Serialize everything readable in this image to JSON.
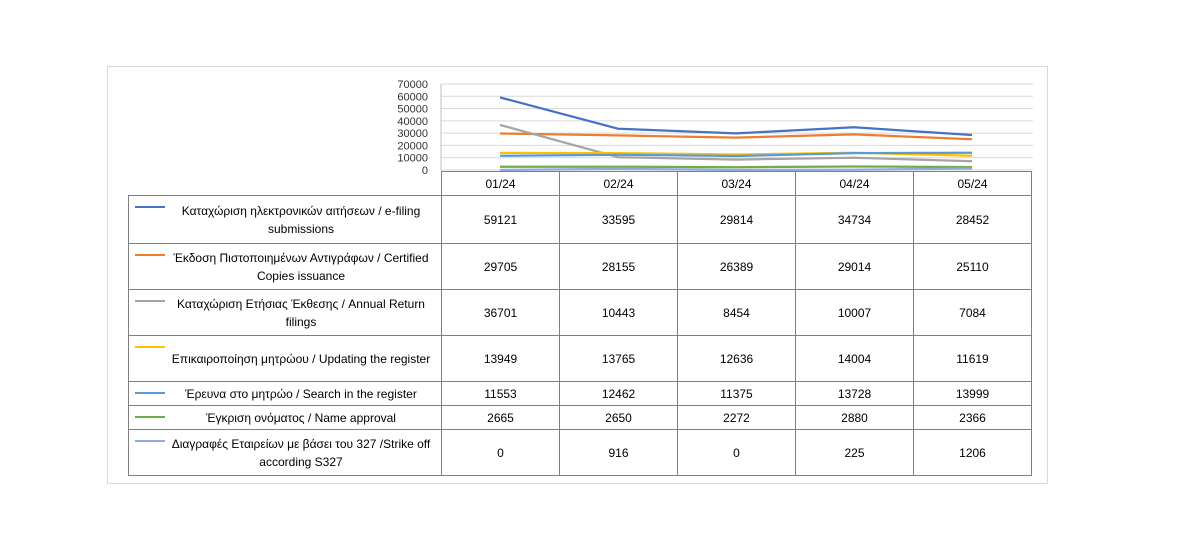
{
  "chart_data": {
    "type": "line",
    "categories": [
      "01/24",
      "02/24",
      "03/24",
      "04/24",
      "05/24"
    ],
    "ylim": [
      0,
      70000
    ],
    "yticks": [
      0,
      10000,
      20000,
      30000,
      40000,
      50000,
      60000,
      70000
    ],
    "grid": true,
    "legend": "data-table",
    "series": [
      {
        "name": "Καταχώριση ηλεκτρονικών αιτήσεων / e-filing submissions",
        "color": "#4472c4",
        "values": [
          59121,
          33595,
          29814,
          34734,
          28452
        ]
      },
      {
        "name": "Έκδοση Πιστοποιημένων Αντιγράφων / Certified Copies issuance",
        "color": "#ed7d31",
        "values": [
          29705,
          28155,
          26389,
          29014,
          25110
        ]
      },
      {
        "name": "Καταχώριση Ετήσιας Έκθεσης / Annual Return filings",
        "color": "#a5a5a5",
        "values": [
          36701,
          10443,
          8454,
          10007,
          7084
        ]
      },
      {
        "name": "Επικαιροποίηση μητρώου / Updating the register",
        "color": "#ffc000",
        "values": [
          13949,
          13765,
          12636,
          14004,
          11619
        ]
      },
      {
        "name": "Έρευνα στο μητρώο / Search in the register",
        "color": "#5b9bd5",
        "values": [
          11553,
          12462,
          11375,
          13728,
          13999
        ]
      },
      {
        "name": "Έγκριση ονόματος / Name approval",
        "color": "#70ad47",
        "values": [
          2665,
          2650,
          2272,
          2880,
          2366
        ]
      },
      {
        "name": "Διαγραφές Εταιρείων με βάσει του 327 /Strike off according S327",
        "color": "#8faadc",
        "values": [
          0,
          916,
          0,
          225,
          1206
        ]
      }
    ]
  }
}
